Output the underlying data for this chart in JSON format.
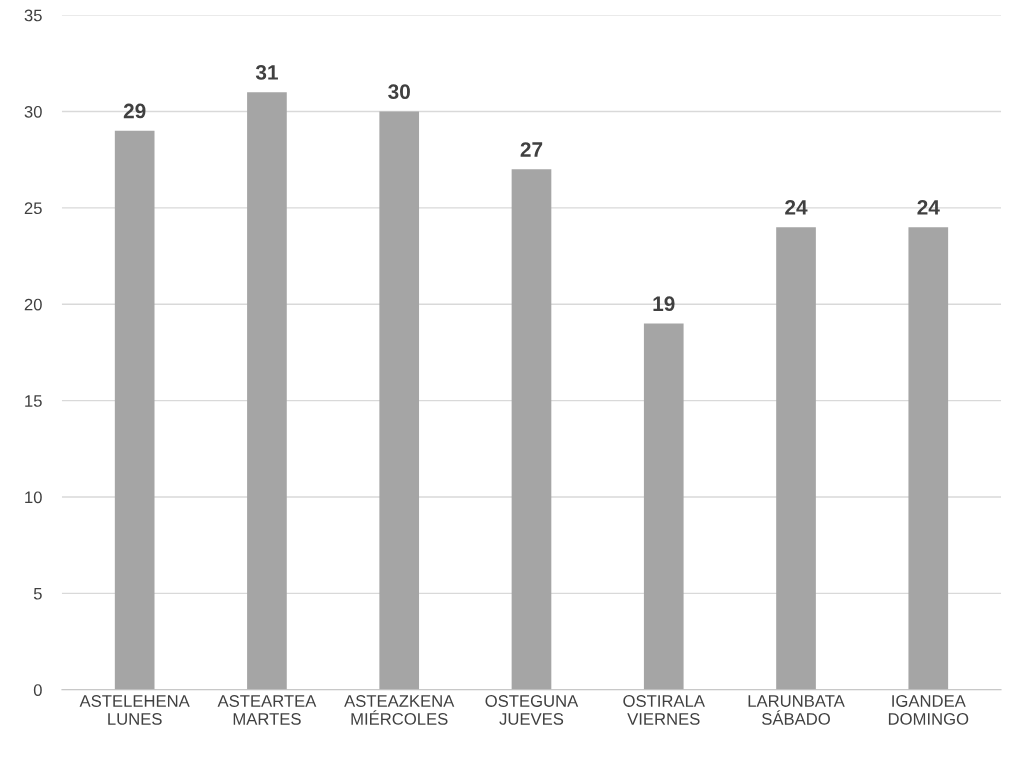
{
  "chart_data": {
    "type": "bar",
    "categories": [
      "ASTELEHENA\nLUNES",
      "ASTEARTEA\nMARTES",
      "ASTEAZKENA\nMIÉRCOLES",
      "OSTEGUNA\nJUEVES",
      "OSTIRALA\nVIERNES",
      "LARUNBATA\nSÁBADO",
      "IGANDEA\nDOMINGO"
    ],
    "values": [
      29,
      31,
      30,
      27,
      19,
      24,
      24
    ],
    "color": "#a5a5a5",
    "ylim": [
      0,
      35
    ],
    "yticks": [
      0,
      5,
      10,
      15,
      20,
      25,
      30,
      35
    ],
    "grid": "y",
    "data_labels": true
  }
}
